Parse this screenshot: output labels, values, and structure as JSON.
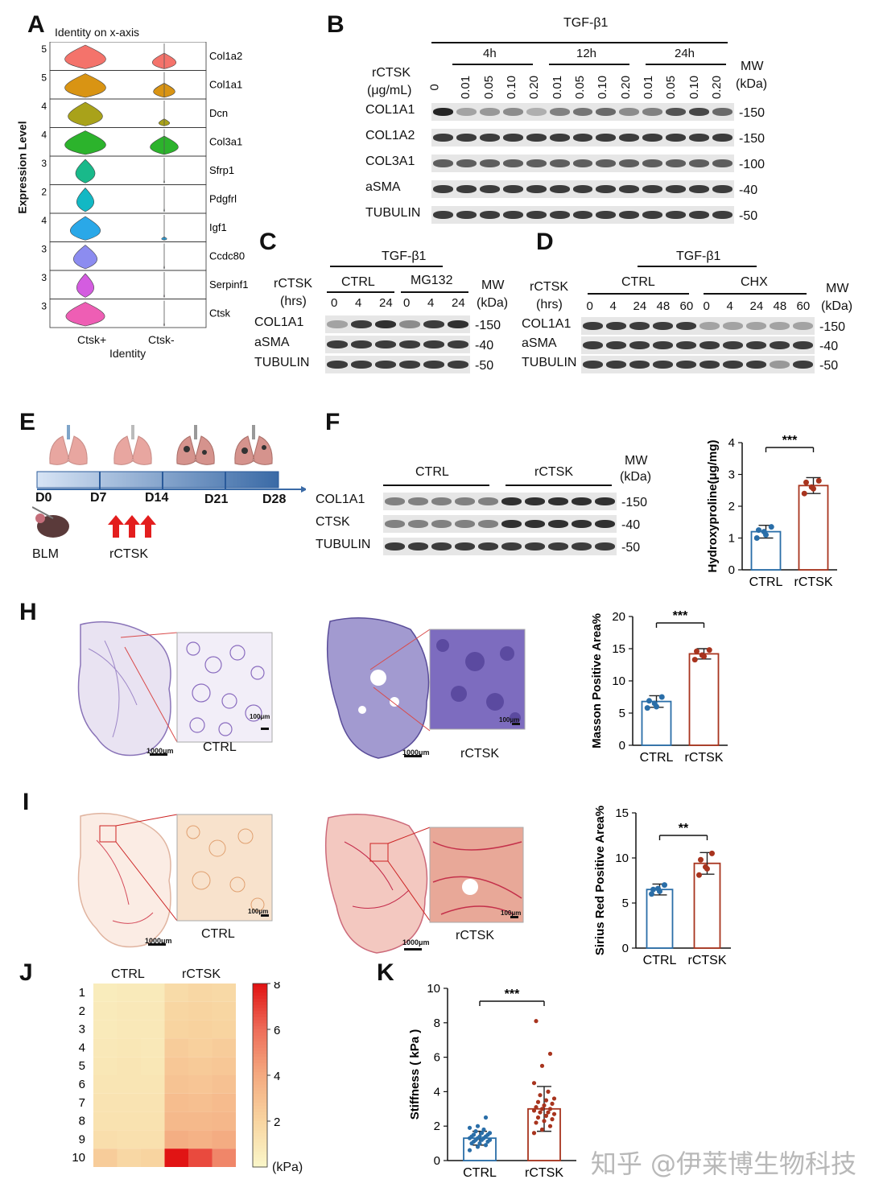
{
  "panels": {
    "A": {
      "label": "A",
      "title": "Identity on x-axis",
      "ylabel": "Expression Level",
      "xlabel": "Identity",
      "groups": [
        "Ctsk+",
        "Ctsk-"
      ],
      "genes": [
        {
          "name": "Col1a2",
          "ymax": "5",
          "color": "#f4736b",
          "w1": 0.95,
          "w2": 0.55
        },
        {
          "name": "Col1a1",
          "ymax": "5",
          "color": "#d99413",
          "w1": 0.95,
          "w2": 0.5
        },
        {
          "name": "Dcn",
          "ymax": "4",
          "color": "#a9a21a",
          "w1": 0.8,
          "w2": 0.25
        },
        {
          "name": "Col3a1",
          "ymax": "4",
          "color": "#2cb32c",
          "w1": 0.95,
          "w2": 0.65
        },
        {
          "name": "Sfrp1",
          "ymax": "3",
          "color": "#19b98a",
          "w1": 0.45,
          "w2": 0.02
        },
        {
          "name": "Pdgfrl",
          "ymax": "2",
          "color": "#12b8c4",
          "w1": 0.4,
          "w2": 0.02
        },
        {
          "name": "Igf1",
          "ymax": "4",
          "color": "#2aa8e8",
          "w1": 0.7,
          "w2": 0.12
        },
        {
          "name": "Ccdc80",
          "ymax": "3",
          "color": "#8c8cf0",
          "w1": 0.55,
          "w2": 0.02
        },
        {
          "name": "Serpinf1",
          "ymax": "3",
          "color": "#d45ce0",
          "w1": 0.4,
          "w2": 0.02
        },
        {
          "name": "Ctsk",
          "ymax": "3",
          "color": "#ee5eb4",
          "w1": 0.9,
          "w2": 0.02
        }
      ]
    },
    "B": {
      "label": "B",
      "treatment": "TGF-β1",
      "times": [
        "4h",
        "12h",
        "24h"
      ],
      "dose_label": "rCTSK",
      "dose_unit": "(μg/mL)",
      "doses": [
        "0",
        "0.01",
        "0.05",
        "0.10",
        "0.20",
        "0.01",
        "0.05",
        "0.10",
        "0.20",
        "0.01",
        "0.05",
        "0.10",
        "0.20"
      ],
      "mw_label": "MW",
      "mw_unit": "(kDa)",
      "blots": [
        {
          "name": "COL1A1",
          "mw": "-150"
        },
        {
          "name": "COL1A2",
          "mw": "-150"
        },
        {
          "name": "COL3A1",
          "mw": "-100"
        },
        {
          "name": "aSMA",
          "mw": "-40"
        },
        {
          "name": "TUBULIN",
          "mw": "-50"
        }
      ]
    },
    "C": {
      "label": "C",
      "treatment": "TGF-β1",
      "dose_label": "rCTSK",
      "dose_unit": "(hrs)",
      "groups": [
        "CTRL",
        "MG132"
      ],
      "lanes": [
        "0",
        "4",
        "24",
        "0",
        "4",
        "24"
      ],
      "mw_label": "MW",
      "mw_unit": "(kDa)",
      "blots": [
        {
          "name": "COL1A1",
          "mw": "-150"
        },
        {
          "name": "aSMA",
          "mw": "-40"
        },
        {
          "name": "TUBULIN",
          "mw": "-50"
        }
      ]
    },
    "D": {
      "label": "D",
      "treatment": "TGF-β1",
      "dose_label": "rCTSK",
      "dose_unit": "(hrs)",
      "groups": [
        "CTRL",
        "CHX"
      ],
      "lanes": [
        "0",
        "4",
        "24",
        "48",
        "60",
        "0",
        "4",
        "24",
        "48",
        "60"
      ],
      "mw_label": "MW",
      "mw_unit": "(kDa)",
      "blots": [
        {
          "name": "COL1A1",
          "mw": "-150"
        },
        {
          "name": "aSMA",
          "mw": "-40"
        },
        {
          "name": "TUBULIN",
          "mw": "-50"
        }
      ]
    },
    "E": {
      "label": "E",
      "days": [
        "D0",
        "D7",
        "D14",
        "D21",
        "D28"
      ],
      "blm": "BLM",
      "rctsk": "rCTSK"
    },
    "F": {
      "label": "F",
      "groups": [
        "CTRL",
        "rCTSK"
      ],
      "mw_label": "MW",
      "mw_unit": "(kDa)",
      "blots": [
        {
          "name": "COL1A1",
          "mw": "-150"
        },
        {
          "name": "CTSK",
          "mw": "-40"
        },
        {
          "name": "TUBULIN",
          "mw": "-50"
        }
      ]
    },
    "H": {
      "label": "H",
      "left": "CTRL",
      "right": "rCTSK",
      "scale_big": "1000μm",
      "scale_small": "100μm"
    },
    "I": {
      "label": "I",
      "left": "CTRL",
      "right": "rCTSK",
      "scale_big": "1000μm",
      "scale_small": "100μm"
    },
    "J": {
      "label": "J",
      "cols": [
        "CTRL",
        "rCTSK"
      ],
      "rows": [
        "1",
        "2",
        "3",
        "4",
        "5",
        "6",
        "7",
        "8",
        "9",
        "10"
      ],
      "cbar_ticks": [
        "8",
        "6",
        "4",
        "2"
      ],
      "cbar_unit": "(kPa)"
    },
    "K": {
      "label": "K"
    }
  },
  "chart_data": [
    {
      "id": "G",
      "type": "bar",
      "categories": [
        "CTRL",
        "rCTSK"
      ],
      "values": [
        1.2,
        2.65
      ],
      "errors": [
        0.2,
        0.25
      ],
      "points": [
        [
          1.0,
          1.2,
          1.35,
          1.25,
          1.1
        ],
        [
          2.4,
          2.6,
          2.8,
          2.75,
          2.55
        ]
      ],
      "ylabel": "Hydroxyproline(μg/mg)",
      "ylim": [
        0,
        4
      ],
      "yticks": [
        "0",
        "1",
        "2",
        "3",
        "4"
      ],
      "sig": "***",
      "colors": [
        "#2a6ea8",
        "#a8341e"
      ]
    },
    {
      "id": "H",
      "type": "bar",
      "categories": [
        "CTRL",
        "rCTSK"
      ],
      "values": [
        6.8,
        14.2
      ],
      "errors": [
        0.9,
        0.8
      ],
      "points": [
        [
          5.8,
          6.5,
          7.5,
          6.9,
          6.0
        ],
        [
          13.3,
          14.0,
          14.8,
          14.6,
          13.8
        ]
      ],
      "ylabel": "Masson Positive Area%",
      "ylim": [
        0,
        20
      ],
      "yticks": [
        "0",
        "5",
        "10",
        "15",
        "20"
      ],
      "sig": "***",
      "colors": [
        "#2a6ea8",
        "#a8341e"
      ]
    },
    {
      "id": "I",
      "type": "bar",
      "categories": [
        "CTRL",
        "rCTSK"
      ],
      "values": [
        6.5,
        9.4
      ],
      "errors": [
        0.6,
        1.2
      ],
      "points": [
        [
          6.0,
          6.6,
          7.0,
          6.5,
          6.3
        ],
        [
          8.1,
          9.0,
          10.5,
          9.8,
          8.8
        ]
      ],
      "ylabel": "Sirius Red Positive Area%",
      "ylim": [
        0,
        15
      ],
      "yticks": [
        "0",
        "5",
        "10",
        "15"
      ],
      "sig": "**",
      "colors": [
        "#2a6ea8",
        "#a8341e"
      ]
    },
    {
      "id": "K",
      "type": "bar",
      "categories": [
        "CTRL",
        "rCTSK"
      ],
      "values": [
        1.3,
        3.0
      ],
      "errors": [
        0.4,
        1.3
      ],
      "points": [
        [
          0.6,
          0.8,
          0.9,
          1.0,
          1.0,
          1.1,
          1.1,
          1.2,
          1.2,
          1.2,
          1.3,
          1.3,
          1.3,
          1.4,
          1.4,
          1.4,
          1.5,
          1.5,
          1.6,
          1.6,
          1.7,
          1.8,
          1.9,
          2.0,
          2.5
        ],
        [
          1.6,
          1.8,
          2.0,
          2.2,
          2.3,
          2.4,
          2.5,
          2.6,
          2.7,
          2.8,
          2.8,
          2.9,
          3.0,
          3.0,
          3.1,
          3.2,
          3.3,
          3.4,
          3.5,
          3.6,
          3.8,
          4.0,
          4.5,
          5.5,
          6.2,
          8.1
        ]
      ],
      "ylabel": "Stiffness ( kPa )",
      "ylim": [
        0,
        10
      ],
      "yticks": [
        "0",
        "2",
        "4",
        "6",
        "8",
        "10"
      ],
      "sig": "***",
      "colors": [
        "#2a6ea8",
        "#a8341e"
      ]
    },
    {
      "id": "J",
      "type": "heatmap",
      "xlabel": "",
      "ylabel": "",
      "ylim": [
        0,
        8
      ],
      "values": [
        [
          0.6,
          0.7,
          0.7,
          1.6,
          1.8,
          1.7
        ],
        [
          0.7,
          0.8,
          0.8,
          1.9,
          2.0,
          1.9
        ],
        [
          0.7,
          0.8,
          0.8,
          2.0,
          2.1,
          2.0
        ],
        [
          0.8,
          0.9,
          0.8,
          2.4,
          2.2,
          2.4
        ],
        [
          0.9,
          1.0,
          0.9,
          2.6,
          2.5,
          2.6
        ],
        [
          1.0,
          1.0,
          1.0,
          2.8,
          2.7,
          2.9
        ],
        [
          1.1,
          1.1,
          1.1,
          3.1,
          3.0,
          3.2
        ],
        [
          1.2,
          1.2,
          1.2,
          3.3,
          3.3,
          3.4
        ],
        [
          1.4,
          1.3,
          1.3,
          3.8,
          3.6,
          3.9
        ],
        [
          2.4,
          1.8,
          2.0,
          8.0,
          6.8,
          5.2
        ]
      ]
    }
  ],
  "watermark": "知乎 @伊莱博生物科技"
}
